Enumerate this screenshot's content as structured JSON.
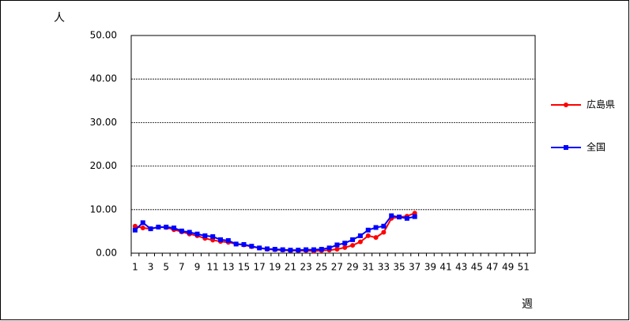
{
  "chart_data": {
    "type": "line",
    "y_label": "人",
    "x_label": "週",
    "categories": [
      "1",
      null,
      "3",
      null,
      "5",
      null,
      "7",
      null,
      "9",
      null,
      "11",
      null,
      "13",
      null,
      "15",
      null,
      "17",
      null,
      "19",
      null,
      "21",
      null,
      "23",
      null,
      "25",
      null,
      "27",
      null,
      "29",
      null,
      "31",
      null,
      "33",
      null,
      "35",
      null,
      "37",
      null,
      "39",
      null,
      "41",
      null,
      "43",
      null,
      "45",
      null,
      "47",
      null,
      "49",
      null,
      "51",
      null
    ],
    "series": [
      {
        "name": "広島県",
        "color": "#ff0000",
        "marker": "circle",
        "values": [
          6.2,
          5.8,
          5.6,
          6.0,
          5.9,
          5.4,
          4.9,
          4.4,
          4.0,
          3.4,
          3.0,
          2.7,
          2.5,
          2.1,
          1.9,
          1.5,
          1.2,
          0.9,
          0.8,
          0.7,
          0.6,
          0.6,
          0.6,
          0.5,
          0.6,
          0.7,
          0.9,
          1.3,
          1.8,
          2.6,
          4.0,
          3.6,
          4.8,
          8.0,
          8.3,
          8.5,
          9.2,
          null,
          null,
          null,
          null,
          null,
          null,
          null,
          null,
          null,
          null,
          null,
          null,
          null,
          null,
          null
        ]
      },
      {
        "name": "全国",
        "color": "#0000ff",
        "marker": "square",
        "values": [
          5.3,
          7.0,
          5.6,
          6.0,
          6.0,
          5.8,
          5.1,
          4.8,
          4.4,
          4.0,
          3.8,
          3.1,
          2.9,
          2.1,
          2.0,
          1.6,
          1.2,
          1.0,
          0.9,
          0.8,
          0.7,
          0.7,
          0.8,
          0.8,
          0.9,
          1.2,
          1.9,
          2.3,
          3.1,
          4.0,
          5.3,
          5.9,
          6.2,
          8.6,
          8.3,
          8.0,
          8.4,
          null,
          null,
          null,
          null,
          null,
          null,
          null,
          null,
          null,
          null,
          null,
          null,
          null,
          null,
          null
        ]
      }
    ],
    "ylim": [
      0,
      50
    ],
    "yticks": [
      {
        "value": 0,
        "label": "0.00"
      },
      {
        "value": 10,
        "label": "10.00"
      },
      {
        "value": 20,
        "label": "20.00"
      },
      {
        "value": 30,
        "label": "30.00"
      },
      {
        "value": 40,
        "label": "40.00"
      },
      {
        "value": 50,
        "label": "50.00"
      }
    ],
    "grid": true,
    "legend": "right"
  }
}
